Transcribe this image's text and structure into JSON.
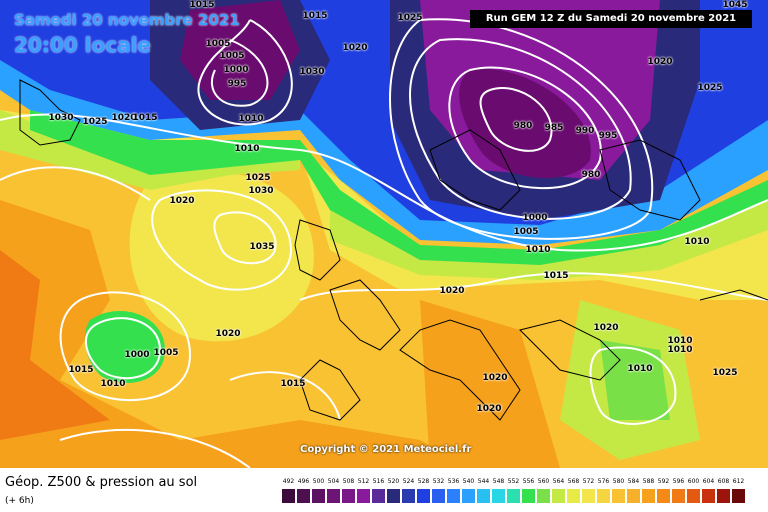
{
  "title": {
    "line1": "Samedi 20 novembre 2021",
    "line2": "20:00 locale"
  },
  "run_info": "Run GEM 12 Z du Samedi 20 novembre 2021",
  "copyright": "Copyright © 2021 Meteociel.fr",
  "footer": {
    "title": "Géop. Z500 & pression au sol",
    "subtitle": "(+ 6h)"
  },
  "colors": {
    "deep_low": "#6a0b6f",
    "purple": "#8a1a9c",
    "navy": "#2a2a7a",
    "blue": "#1f3fe0",
    "lightblue": "#2aa0ff",
    "cyan": "#27d7e6",
    "green": "#35e04e",
    "yellowgreen": "#c4e844",
    "yellow": "#f2e64c",
    "light_orange": "#f9c233",
    "orange": "#f5a11b",
    "dark_orange": "#f07a14",
    "isobar": "#ffffff"
  },
  "isobar_labels": [
    "1015",
    "1015",
    "1005",
    "1000",
    "995",
    "1005",
    "1030",
    "1030",
    "1025",
    "1020",
    "1015",
    "1010",
    "1030",
    "1025",
    "1020",
    "1035",
    "1010",
    "1025",
    "1020",
    "1015",
    "1005",
    "1000",
    "1015",
    "1010",
    "1020",
    "1015",
    "980",
    "985",
    "990",
    "995",
    "980",
    "1000",
    "1005",
    "1010",
    "1015",
    "1020",
    "1020",
    "1020",
    "1020",
    "1010",
    "1010",
    "1010",
    "1010",
    "1020",
    "1025",
    "1045",
    "1025"
  ],
  "legend": {
    "ticks": [
      "492",
      "496",
      "500",
      "504",
      "508",
      "512",
      "516",
      "520",
      "524",
      "528",
      "532",
      "536",
      "540",
      "544",
      "548",
      "552",
      "556",
      "560",
      "564",
      "568",
      "572",
      "576",
      "580",
      "584",
      "588",
      "592",
      "596",
      "600",
      "604",
      "608",
      "612"
    ],
    "colors": [
      "#3d0a3d",
      "#4c0f4f",
      "#5c1162",
      "#6c1575",
      "#7b1888",
      "#8a1a9c",
      "#5a2a9a",
      "#2a2a7a",
      "#2a3ab0",
      "#1f3fe0",
      "#2a60f0",
      "#2a80ff",
      "#2aa0ff",
      "#27c0f0",
      "#27d7e6",
      "#2ae0b0",
      "#35e04e",
      "#7ae048",
      "#c4e844",
      "#e8ea48",
      "#f2e64c",
      "#f5d640",
      "#f9c233",
      "#f7b02a",
      "#f5a11b",
      "#f38a18",
      "#f07a14",
      "#e45a12",
      "#c8300e",
      "#9c140c",
      "#6a080a"
    ]
  }
}
